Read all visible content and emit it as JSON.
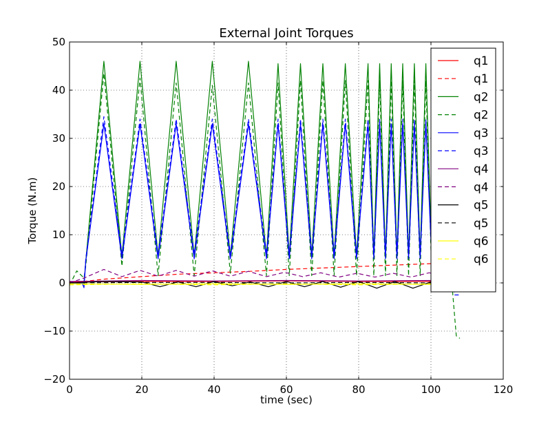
{
  "chart_data": {
    "type": "line",
    "title": "External Joint Torques",
    "xlabel": "time (sec)",
    "ylabel": "Torque (N.m)",
    "xlim": [
      0,
      120
    ],
    "ylim": [
      -20,
      50
    ],
    "xticks": [
      0,
      20,
      40,
      60,
      80,
      100,
      120
    ],
    "yticks": [
      -20,
      -10,
      0,
      10,
      20,
      30,
      40,
      50
    ],
    "xtick_labels": [
      "0",
      "20",
      "40",
      "60",
      "80",
      "100",
      "120"
    ],
    "ytick_labels": [
      "−20",
      "−10",
      "0",
      "10",
      "20",
      "30",
      "40",
      "50"
    ],
    "grid": true,
    "legend_position": "top-right",
    "colors": {
      "red": "#ff0000",
      "green": "#008000",
      "blue": "#0000ff",
      "purple": "#800080",
      "black": "#000000",
      "yellow": "#ffff00"
    },
    "series": [
      {
        "name": "q1",
        "color": "#ff0000",
        "style": "solid",
        "x": [
          0,
          20,
          40,
          60,
          80,
          100,
          108
        ],
        "y": [
          0.2,
          0.3,
          0.3,
          0.4,
          0.3,
          0.3,
          0.3
        ]
      },
      {
        "name": "q1",
        "color": "#ff0000",
        "style": "dashed",
        "x": [
          0,
          10,
          20,
          30,
          40,
          50,
          60,
          70,
          80,
          90,
          100,
          108
        ],
        "y": [
          0,
          0.8,
          1.3,
          1.8,
          2.1,
          2.4,
          2.8,
          3.1,
          3.4,
          3.7,
          4.0,
          4.2
        ]
      },
      {
        "name": "q2",
        "color": "#008000",
        "style": "solid",
        "x": [
          0,
          4,
          4.5,
          9.5,
          14.5,
          19.5,
          24.5,
          29.5,
          34.5,
          39.5,
          44.5,
          49.5,
          54.5,
          57.7,
          60.8,
          63.9,
          67.0,
          70.1,
          73.2,
          76.3,
          79.4,
          82.6,
          84.2,
          85.8,
          87.4,
          89.0,
          90.6,
          92.2,
          93.8,
          95.4,
          97.0,
          98.6,
          100.2,
          101.8,
          103.4,
          105
        ],
        "y": [
          0,
          0,
          4.5,
          46,
          5.5,
          46,
          5.5,
          46,
          5.5,
          46,
          5.5,
          46,
          5.5,
          45.5,
          5.5,
          45.5,
          5.5,
          45.5,
          5.5,
          45.5,
          5.5,
          45.5,
          5.5,
          45.5,
          5.5,
          45.5,
          5.5,
          45.5,
          5.5,
          45.5,
          5.5,
          45.5,
          5.5,
          45.5,
          5.5,
          45.5
        ]
      },
      {
        "name": "q2",
        "color": "#008000",
        "style": "dashed",
        "x": [
          0,
          2,
          4,
          4.5,
          9.5,
          14.5,
          19.5,
          24.5,
          29.5,
          34.5,
          39.5,
          44.5,
          49.5,
          54.5,
          57.7,
          60.8,
          63.9,
          67.0,
          70.1,
          73.2,
          76.3,
          79.4,
          82.6,
          84.2,
          85.8,
          87.4,
          89.0,
          90.6,
          92.2,
          93.8,
          95.4,
          97.0,
          98.6,
          100.2,
          101.8,
          103.4,
          105,
          106,
          107,
          108
        ],
        "y": [
          -0.5,
          2.5,
          1,
          3.5,
          43.5,
          3.5,
          42.5,
          1.5,
          41.5,
          1.5,
          41,
          2,
          41.5,
          1.5,
          41.5,
          1.5,
          42,
          1.5,
          42,
          1.5,
          42,
          1.5,
          42,
          1.5,
          42,
          1.5,
          42,
          1.5,
          42,
          1.5,
          42,
          1.5,
          42,
          1.5,
          42,
          1.5,
          42,
          -2,
          -11,
          -11.5
        ]
      },
      {
        "name": "q3",
        "color": "#0000ff",
        "style": "solid",
        "x": [
          0,
          3.5,
          4,
          4.5,
          9.5,
          14.5,
          19.5,
          24.5,
          29.5,
          34.5,
          39.5,
          44.5,
          49.5,
          54.5,
          57.7,
          60.8,
          63.9,
          67.0,
          70.1,
          73.2,
          76.3,
          79.4,
          82.6,
          84.2,
          85.8,
          87.4,
          89.0,
          90.6,
          92.2,
          93.8,
          95.4,
          97.0,
          98.6,
          100.2,
          101.8,
          103.4,
          105
        ],
        "y": [
          0,
          0,
          -1,
          4.5,
          33,
          5,
          33,
          5,
          33,
          5,
          33,
          5,
          33,
          5,
          33,
          5,
          33,
          5,
          33,
          5,
          33,
          5,
          33,
          5,
          33,
          5,
          33,
          5,
          33,
          5,
          33,
          5,
          33,
          5,
          33,
          5,
          33
        ]
      },
      {
        "name": "q3",
        "color": "#0000ff",
        "style": "dashed",
        "x": [
          0,
          4,
          4.5,
          9.5,
          14.5,
          19.5,
          24.5,
          29.5,
          34.5,
          39.5,
          44.5,
          49.5,
          54.5,
          57.7,
          60.8,
          63.9,
          67.0,
          70.1,
          73.2,
          76.3,
          79.4,
          82.6,
          84.2,
          85.8,
          87.4,
          89.0,
          90.6,
          92.2,
          93.8,
          95.4,
          97.0,
          98.6,
          100.2,
          101.8,
          103.4,
          105,
          106.5,
          108
        ],
        "y": [
          0,
          0,
          5,
          34.5,
          6,
          34,
          6,
          34,
          6,
          34,
          6,
          34,
          6,
          34,
          6,
          34,
          6,
          34,
          6,
          34,
          6,
          34,
          6,
          34,
          6,
          34,
          6,
          34,
          6,
          34,
          6,
          34,
          6,
          34,
          6,
          34,
          -2.5,
          -2.5
        ]
      },
      {
        "name": "q4",
        "color": "#800080",
        "style": "solid",
        "x": [
          0,
          20,
          40,
          60,
          80,
          100,
          108
        ],
        "y": [
          0.3,
          0.5,
          0.4,
          0.5,
          0.4,
          0.5,
          0.4
        ]
      },
      {
        "name": "q4",
        "color": "#800080",
        "style": "dashed",
        "x": [
          0,
          4,
          9.5,
          14.5,
          19.5,
          24.5,
          29.5,
          34.5,
          39.5,
          44.5,
          49.5,
          54.5,
          59.5,
          64.5,
          69.5,
          74.5,
          79.5,
          84.5,
          89.5,
          94.5,
          99.5,
          104.5,
          108
        ],
        "y": [
          0,
          1,
          2.8,
          1.3,
          2.6,
          1.4,
          2.6,
          1.4,
          2.5,
          1.4,
          2.4,
          1.3,
          2.2,
          1.3,
          2.1,
          1.2,
          2.0,
          1.2,
          2.0,
          1.2,
          2.1,
          1.2,
          1.8
        ]
      },
      {
        "name": "q5",
        "color": "#000000",
        "style": "solid",
        "x": [
          0,
          10,
          20,
          25,
          30,
          35,
          40,
          45,
          50,
          55,
          60,
          65,
          70,
          75,
          80,
          85,
          90,
          95,
          100,
          105,
          108
        ],
        "y": [
          0,
          0.3,
          0.2,
          -0.8,
          0.2,
          -0.8,
          0.3,
          -0.6,
          0.2,
          -0.8,
          0.3,
          -0.8,
          0.3,
          -0.9,
          0.3,
          -1.1,
          0.3,
          -1.1,
          0.2,
          -1.2,
          -0.5
        ]
      },
      {
        "name": "q5",
        "color": "#000000",
        "style": "dashed",
        "x": [
          0,
          20,
          40,
          60,
          80,
          100,
          108
        ],
        "y": [
          0,
          0.1,
          0.1,
          0,
          0.1,
          0,
          0
        ]
      },
      {
        "name": "q6",
        "color": "#ffff00",
        "style": "solid",
        "x": [
          0,
          20,
          40,
          60,
          80,
          100,
          108
        ],
        "y": [
          -0.2,
          -0.3,
          -0.2,
          -0.3,
          -0.2,
          -0.3,
          -0.3
        ]
      },
      {
        "name": "q6",
        "color": "#ffff00",
        "style": "dashed",
        "x": [
          0,
          20,
          40,
          60,
          80,
          100,
          108
        ],
        "y": [
          -0.4,
          -0.2,
          -0.4,
          -0.2,
          -0.4,
          -0.2,
          -0.4
        ]
      }
    ]
  }
}
